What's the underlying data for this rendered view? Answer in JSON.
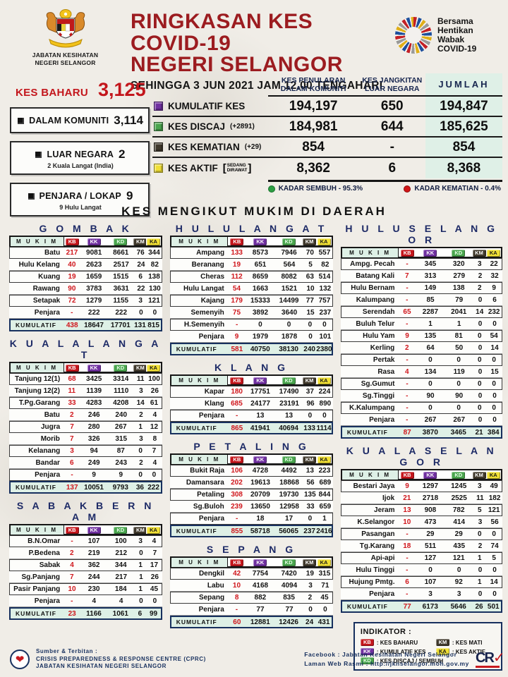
{
  "colors": {
    "maroon": "#9c1c20",
    "red": "#c3161c",
    "navy": "#1d2a66",
    "mint": "#dff0e7",
    "badge_kb": "#c4161c",
    "badge_kk": "#7030a0",
    "badge_kd": "#4aa54e",
    "badge_km": "#40392c",
    "badge_ka": "#f0df35",
    "rate_green": "#2d9e43",
    "rate_red": "#d01617"
  },
  "header": {
    "org_line1": "JABATAN KESIHATAN",
    "org_line2": "NEGERI SELANGOR",
    "title_line1": "RINGKASAN KES COVID-19",
    "title_line2": "NEGERI SELANGOR",
    "subtitle": "SEHINGGA 3 JUN 2021 JAM 12.00 TENGAHARI",
    "campaign_lines": [
      "Bersama",
      "Hentikan",
      "Wabak",
      "COVID-19"
    ]
  },
  "new_cases": {
    "label": "KES BAHARU",
    "value": "3,125",
    "items": [
      {
        "label": "DALAM KOMUNITI",
        "value": "3,114",
        "note": ""
      },
      {
        "label": "LUAR NEGARA",
        "value": "2",
        "note": "2 Kuala Langat (India)"
      },
      {
        "label": "PENJARA / LOKAP",
        "value": "9",
        "note": "9 Hulu Langat"
      }
    ]
  },
  "summary": {
    "col1_line1": "KES PENULARAN",
    "col1_line2": "DALAM KOMUNITI",
    "col2_line1": "KES JANGKITAN",
    "col2_line2": "LUAR NEGARA",
    "col3": "JUMLAH",
    "rows": [
      {
        "label": "KUMULATIF KES",
        "suffix": "",
        "icon": "purple-square-icon",
        "icon_color": "#7030a0",
        "community": "194,197",
        "imported": "650",
        "total": "194,847"
      },
      {
        "label": "KES DISCAJ",
        "suffix": "(+2891)",
        "icon": "green-square-icon",
        "icon_color": "#4aa54e",
        "community": "184,981",
        "imported": "644",
        "total": "185,625"
      },
      {
        "label": "KES KEMATIAN",
        "suffix": "(+29)",
        "icon": "black-square-icon",
        "icon_color": "#40392c",
        "community": "854",
        "imported": "-",
        "total": "854"
      },
      {
        "label": "KES AKTIF",
        "suffix": "",
        "suffix_stack": [
          "SEDANG",
          "DIRAWAT"
        ],
        "icon": "yellow-square-icon",
        "icon_color": "#f0df35",
        "community": "8,362",
        "imported": "6",
        "total": "8,368"
      }
    ],
    "recovery_label": "KADAR SEMBUH - 95.3%",
    "death_label": "KADAR KEMATIAN - 0.4%"
  },
  "section_heading": "KES MENGIKUT MUKIM DI DAERAH",
  "mukim_header": "MUKIM",
  "badge_codes": [
    "KB",
    "KK",
    "KD",
    "KM",
    "KA"
  ],
  "districts": [
    {
      "name": "GOMBAK",
      "rows": [
        [
          "Batu",
          "217",
          "9081",
          "8661",
          "76",
          "344"
        ],
        [
          "Hulu Kelang",
          "40",
          "2623",
          "2517",
          "24",
          "82"
        ],
        [
          "Kuang",
          "19",
          "1659",
          "1515",
          "6",
          "138"
        ],
        [
          "Rawang",
          "90",
          "3783",
          "3631",
          "22",
          "130"
        ],
        [
          "Setapak",
          "72",
          "1279",
          "1155",
          "3",
          "121"
        ],
        [
          "Penjara",
          "-",
          "222",
          "222",
          "0",
          "0"
        ]
      ],
      "total": [
        "KUMULATIF",
        "438",
        "18647",
        "17701",
        "131",
        "815"
      ]
    },
    {
      "name": "KUALA LANGAT",
      "rows": [
        [
          "Tanjung 12(1)",
          "68",
          "3425",
          "3314",
          "11",
          "100"
        ],
        [
          "Tanjung 12(2)",
          "11",
          "1139",
          "1110",
          "3",
          "26"
        ],
        [
          "T.Pg.Garang",
          "33",
          "4283",
          "4208",
          "14",
          "61"
        ],
        [
          "Batu",
          "2",
          "246",
          "240",
          "2",
          "4"
        ],
        [
          "Jugra",
          "7",
          "280",
          "267",
          "1",
          "12"
        ],
        [
          "Morib",
          "7",
          "326",
          "315",
          "3",
          "8"
        ],
        [
          "Kelanang",
          "3",
          "94",
          "87",
          "0",
          "7"
        ],
        [
          "Bandar",
          "6",
          "249",
          "243",
          "2",
          "4"
        ],
        [
          "Penjara",
          "-",
          "9",
          "9",
          "0",
          "0"
        ]
      ],
      "total": [
        "KUMULATIF",
        "137",
        "10051",
        "9793",
        "36",
        "222"
      ]
    },
    {
      "name": "SABAK BERNAM",
      "rows": [
        [
          "B.N.Omar",
          "-",
          "107",
          "100",
          "3",
          "4"
        ],
        [
          "P.Bedena",
          "2",
          "219",
          "212",
          "0",
          "7"
        ],
        [
          "Sabak",
          "4",
          "362",
          "344",
          "1",
          "17"
        ],
        [
          "Sg.Panjang",
          "7",
          "244",
          "217",
          "1",
          "26"
        ],
        [
          "Pasir Panjang",
          "10",
          "230",
          "184",
          "1",
          "45"
        ],
        [
          "Penjara",
          "-",
          "4",
          "4",
          "0",
          "0"
        ]
      ],
      "total": [
        "KUMULATIF",
        "23",
        "1166",
        "1061",
        "6",
        "99"
      ]
    },
    {
      "name": "HULU LANGAT",
      "rows": [
        [
          "Ampang",
          "133",
          "8573",
          "7946",
          "70",
          "557"
        ],
        [
          "Beranang",
          "19",
          "651",
          "564",
          "5",
          "82"
        ],
        [
          "Cheras",
          "112",
          "8659",
          "8082",
          "63",
          "514"
        ],
        [
          "Hulu Langat",
          "54",
          "1663",
          "1521",
          "10",
          "132"
        ],
        [
          "Kajang",
          "179",
          "15333",
          "14499",
          "77",
          "757"
        ],
        [
          "Semenyih",
          "75",
          "3892",
          "3640",
          "15",
          "237"
        ],
        [
          "H.Semenyih",
          "-",
          "0",
          "0",
          "0",
          "0"
        ],
        [
          "Penjara",
          "9",
          "1979",
          "1878",
          "0",
          "101"
        ]
      ],
      "total": [
        "KUMULATIF",
        "581",
        "40750",
        "38130",
        "240",
        "2380"
      ]
    },
    {
      "name": "KLANG",
      "rows": [
        [
          "Kapar",
          "180",
          "17751",
          "17490",
          "37",
          "224"
        ],
        [
          "Klang",
          "685",
          "24177",
          "23191",
          "96",
          "890"
        ],
        [
          "Penjara",
          "-",
          "13",
          "13",
          "0",
          "0"
        ]
      ],
      "total": [
        "KUMULATIF",
        "865",
        "41941",
        "40694",
        "133",
        "1114"
      ]
    },
    {
      "name": "PETALING",
      "rows": [
        [
          "Bukit Raja",
          "106",
          "4728",
          "4492",
          "13",
          "223"
        ],
        [
          "Damansara",
          "202",
          "19613",
          "18868",
          "56",
          "689"
        ],
        [
          "Petaling",
          "308",
          "20709",
          "19730",
          "135",
          "844"
        ],
        [
          "Sg.Buloh",
          "239",
          "13650",
          "12958",
          "33",
          "659"
        ],
        [
          "Penjara",
          "-",
          "18",
          "17",
          "0",
          "1"
        ]
      ],
      "total": [
        "KUMULATIF",
        "855",
        "58718",
        "56065",
        "237",
        "2416"
      ]
    },
    {
      "name": "SEPANG",
      "rows": [
        [
          "Dengkil",
          "42",
          "7754",
          "7420",
          "19",
          "315"
        ],
        [
          "Labu",
          "10",
          "4168",
          "4094",
          "3",
          "71"
        ],
        [
          "Sepang",
          "8",
          "882",
          "835",
          "2",
          "45"
        ],
        [
          "Penjara",
          "-",
          "77",
          "77",
          "0",
          "0"
        ]
      ],
      "total": [
        "KUMULATIF",
        "60",
        "12881",
        "12426",
        "24",
        "431"
      ]
    },
    {
      "name": "HULU SELANGOR",
      "rows": [
        [
          "Ampg. Pecah",
          "-",
          "345",
          "320",
          "3",
          "22"
        ],
        [
          "Batang Kali",
          "7",
          "313",
          "279",
          "2",
          "32"
        ],
        [
          "Hulu Bernam",
          "-",
          "149",
          "138",
          "2",
          "9"
        ],
        [
          "Kalumpang",
          "-",
          "85",
          "79",
          "0",
          "6"
        ],
        [
          "Serendah",
          "65",
          "2287",
          "2041",
          "14",
          "232"
        ],
        [
          "Buluh Telur",
          "-",
          "1",
          "1",
          "0",
          "0"
        ],
        [
          "Hulu Yam",
          "9",
          "135",
          "81",
          "0",
          "54"
        ],
        [
          "Kerling",
          "2",
          "64",
          "50",
          "0",
          "14"
        ],
        [
          "Pertak",
          "-",
          "0",
          "0",
          "0",
          "0"
        ],
        [
          "Rasa",
          "4",
          "134",
          "119",
          "0",
          "15"
        ],
        [
          "Sg.Gumut",
          "-",
          "0",
          "0",
          "0",
          "0"
        ],
        [
          "Sg.Tinggi",
          "-",
          "90",
          "90",
          "0",
          "0"
        ],
        [
          "K.Kalumpang",
          "-",
          "0",
          "0",
          "0",
          "0"
        ],
        [
          "Penjara",
          "-",
          "267",
          "267",
          "0",
          "0"
        ]
      ],
      "total": [
        "KUMULATIF",
        "87",
        "3870",
        "3465",
        "21",
        "384"
      ]
    },
    {
      "name": "KUALA SELANGOR",
      "rows": [
        [
          "Bestari Jaya",
          "9",
          "1297",
          "1245",
          "3",
          "49"
        ],
        [
          "Ijok",
          "21",
          "2718",
          "2525",
          "11",
          "182"
        ],
        [
          "Jeram",
          "13",
          "908",
          "782",
          "5",
          "121"
        ],
        [
          "K.Selangor",
          "10",
          "473",
          "414",
          "3",
          "56"
        ],
        [
          "Pasangan",
          "-",
          "29",
          "29",
          "0",
          "0"
        ],
        [
          "Tg.Karang",
          "18",
          "511",
          "435",
          "2",
          "74"
        ],
        [
          "Api-api",
          "-",
          "127",
          "121",
          "1",
          "5"
        ],
        [
          "Hulu Tinggi",
          "-",
          "0",
          "0",
          "0",
          "0"
        ],
        [
          "Hujung Pmtg.",
          "6",
          "107",
          "92",
          "1",
          "14"
        ],
        [
          "Penjara",
          "-",
          "3",
          "3",
          "0",
          "0"
        ]
      ],
      "total": [
        "KUMULATIF",
        "77",
        "6173",
        "5646",
        "26",
        "501"
      ]
    }
  ],
  "indikator": {
    "title": "INDIKATOR :",
    "items": [
      {
        "code": "KB",
        "label": "KES BAHARU"
      },
      {
        "code": "KM",
        "label": "KES MATI"
      },
      {
        "code": "KK",
        "label": "KUMULATIF KES"
      },
      {
        "code": "KA",
        "label": "KES AKTIF"
      },
      {
        "code": "KD",
        "label": "KES DISCAJ / SEMBUH"
      }
    ]
  },
  "footer": {
    "source_label": "Sumber & Terbitan :",
    "source_line1": "CRISIS PREPAREDNESS & RESPONSE CENTRE (CPRC)",
    "source_line2": "JABATAN KESIHATAN NEGERI SELANGOR",
    "facebook": "Facebook : Jabatan Kesihatan Negeri Selangor",
    "web": "Laman Web Rasmi : http://jknselangor.moh.gov.my",
    "cr_logo_text": "CR"
  }
}
